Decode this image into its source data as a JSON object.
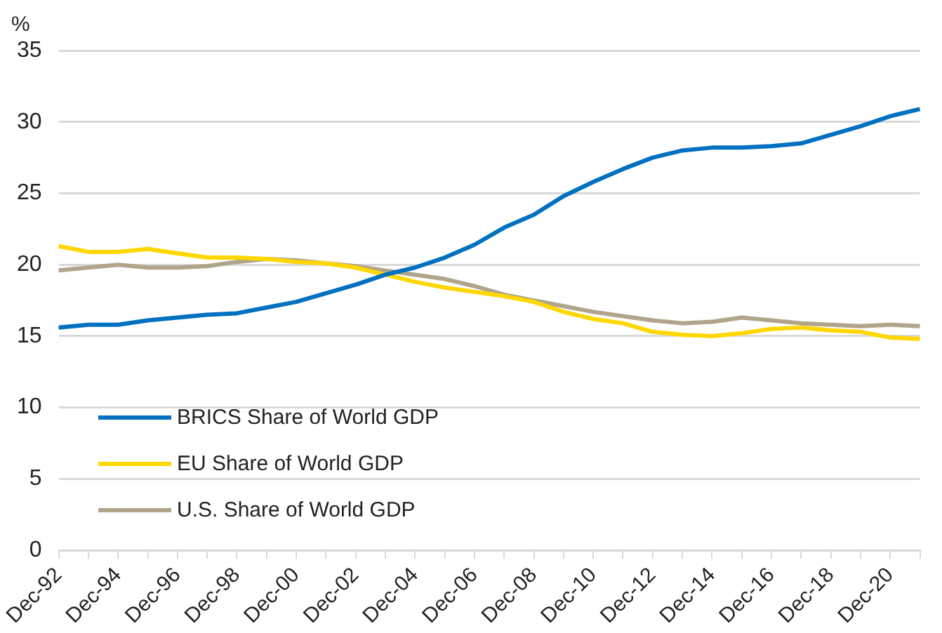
{
  "chart_data": {
    "type": "line",
    "ylabel": "%",
    "categories": [
      "Dec-92",
      null,
      "Dec-94",
      null,
      "Dec-96",
      null,
      "Dec-98",
      null,
      "Dec-00",
      null,
      "Dec-02",
      null,
      "Dec-04",
      null,
      "Dec-06",
      null,
      "Dec-08",
      null,
      "Dec-10",
      null,
      "Dec-12",
      null,
      "Dec-14",
      null,
      "Dec-16",
      null,
      "Dec-18",
      null,
      "Dec-20",
      null
    ],
    "series": [
      {
        "name": "BRICS Share of World GDP",
        "color": "#0070c0",
        "values": [
          15.6,
          15.8,
          15.8,
          16.1,
          16.3,
          16.5,
          16.6,
          17.0,
          17.4,
          18.0,
          18.6,
          19.3,
          19.8,
          20.5,
          21.4,
          22.6,
          23.5,
          24.8,
          25.8,
          26.7,
          27.5,
          28.0,
          28.2,
          28.2,
          28.3,
          28.5,
          29.1,
          29.7,
          30.4,
          30.9
        ]
      },
      {
        "name": "EU Share of World GDP",
        "color": "#ffd700",
        "values": [
          21.3,
          20.9,
          20.9,
          21.1,
          20.8,
          20.5,
          20.5,
          20.4,
          20.2,
          20.1,
          19.8,
          19.3,
          18.8,
          18.4,
          18.1,
          17.8,
          17.4,
          16.7,
          16.2,
          15.9,
          15.3,
          15.1,
          15.0,
          15.2,
          15.5,
          15.6,
          15.4,
          15.3,
          14.9,
          14.8
        ]
      },
      {
        "name": "U.S. Share of World GDP",
        "color": "#b0a58a",
        "values": [
          19.6,
          19.8,
          20.0,
          19.8,
          19.8,
          19.9,
          20.2,
          20.4,
          20.3,
          20.1,
          19.9,
          19.6,
          19.3,
          19.0,
          18.5,
          17.9,
          17.5,
          17.1,
          16.7,
          16.4,
          16.1,
          15.9,
          16.0,
          16.3,
          16.1,
          15.9,
          15.8,
          15.7,
          15.8,
          15.7
        ]
      }
    ],
    "ylim": [
      0,
      35
    ],
    "yticks": [
      0,
      5,
      10,
      15,
      20,
      25,
      30,
      35
    ],
    "grid": "y",
    "legend": "bottom left",
    "marker": "none",
    "line_style": "solid"
  }
}
